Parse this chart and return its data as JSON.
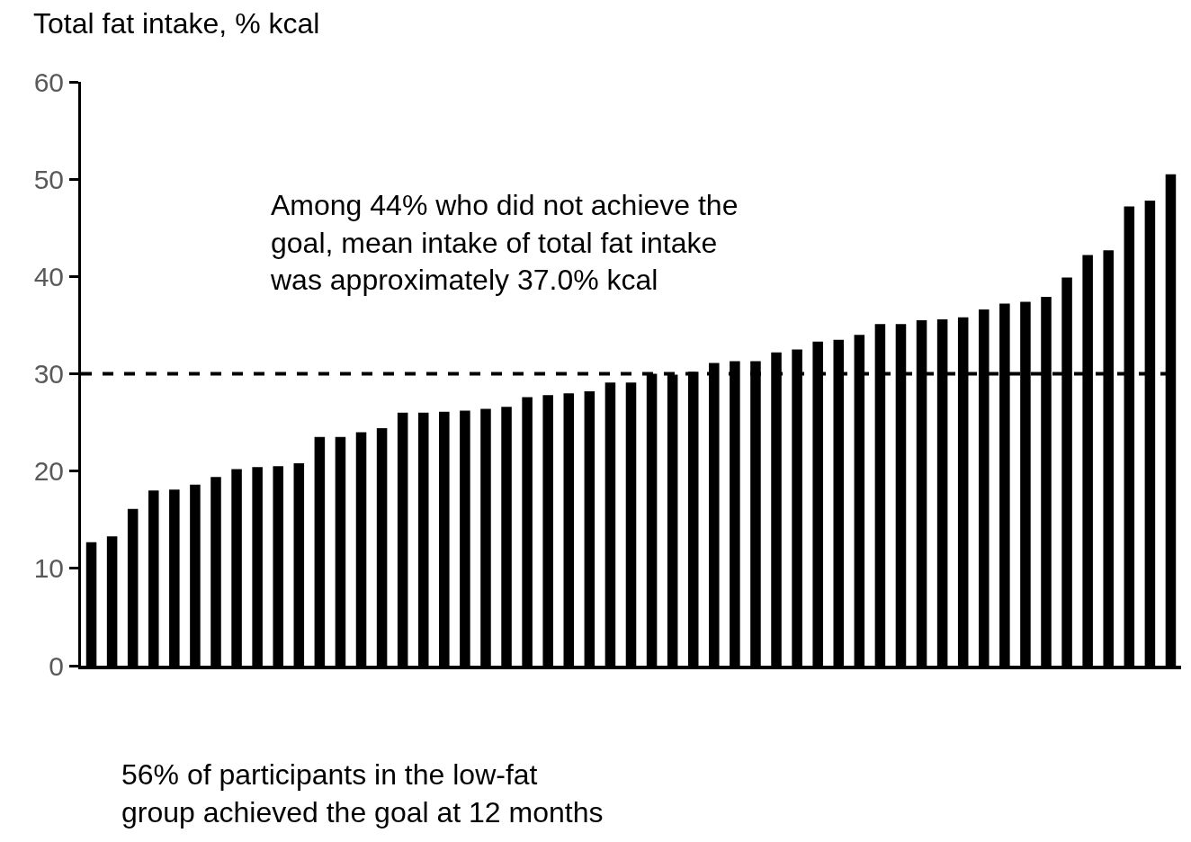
{
  "chart_data": {
    "type": "bar",
    "ylabel": "Total fat intake, % kcal",
    "categories": [
      null,
      null,
      null,
      null,
      null,
      null,
      null,
      null,
      null,
      null,
      null,
      null,
      null,
      null,
      null,
      null,
      null,
      null,
      null,
      null,
      null,
      null,
      null,
      null,
      null,
      null,
      null,
      null,
      null,
      null,
      null,
      null,
      null,
      null,
      null,
      null,
      null,
      null,
      null,
      null,
      null,
      null,
      null,
      null,
      null,
      null,
      null,
      null,
      null,
      null,
      null,
      null,
      null
    ],
    "values": [
      12.7,
      13.3,
      16.1,
      18.0,
      18.1,
      18.6,
      19.4,
      20.2,
      20.4,
      20.5,
      20.8,
      23.5,
      23.5,
      24.0,
      24.4,
      26.0,
      26.0,
      26.1,
      26.2,
      26.4,
      26.6,
      27.6,
      27.8,
      28.0,
      28.2,
      29.1,
      29.1,
      30.0,
      29.9,
      30.2,
      31.1,
      31.3,
      31.3,
      32.2,
      32.5,
      33.3,
      33.5,
      34.0,
      35.1,
      35.1,
      35.5,
      35.6,
      35.8,
      36.6,
      37.2,
      37.4,
      37.9,
      39.9,
      42.2,
      42.7,
      47.2,
      47.8,
      50.5
    ],
    "color": "#000000",
    "ylim": [
      0,
      60
    ],
    "yticks": [
      0,
      10,
      20,
      30,
      40,
      50,
      60
    ],
    "tick_labels": "y",
    "ref_lines": [
      {
        "axis": "y",
        "value": 30,
        "color": "#000000",
        "line_style": "dashed"
      }
    ],
    "annotations": [
      "Among 44% who did not achieve the\ngoal, mean intake of total fat intake\nwas approximately 37.0% kcal",
      "56% of participants in the low-fat\ngroup achieved the goal at 12 months"
    ]
  }
}
